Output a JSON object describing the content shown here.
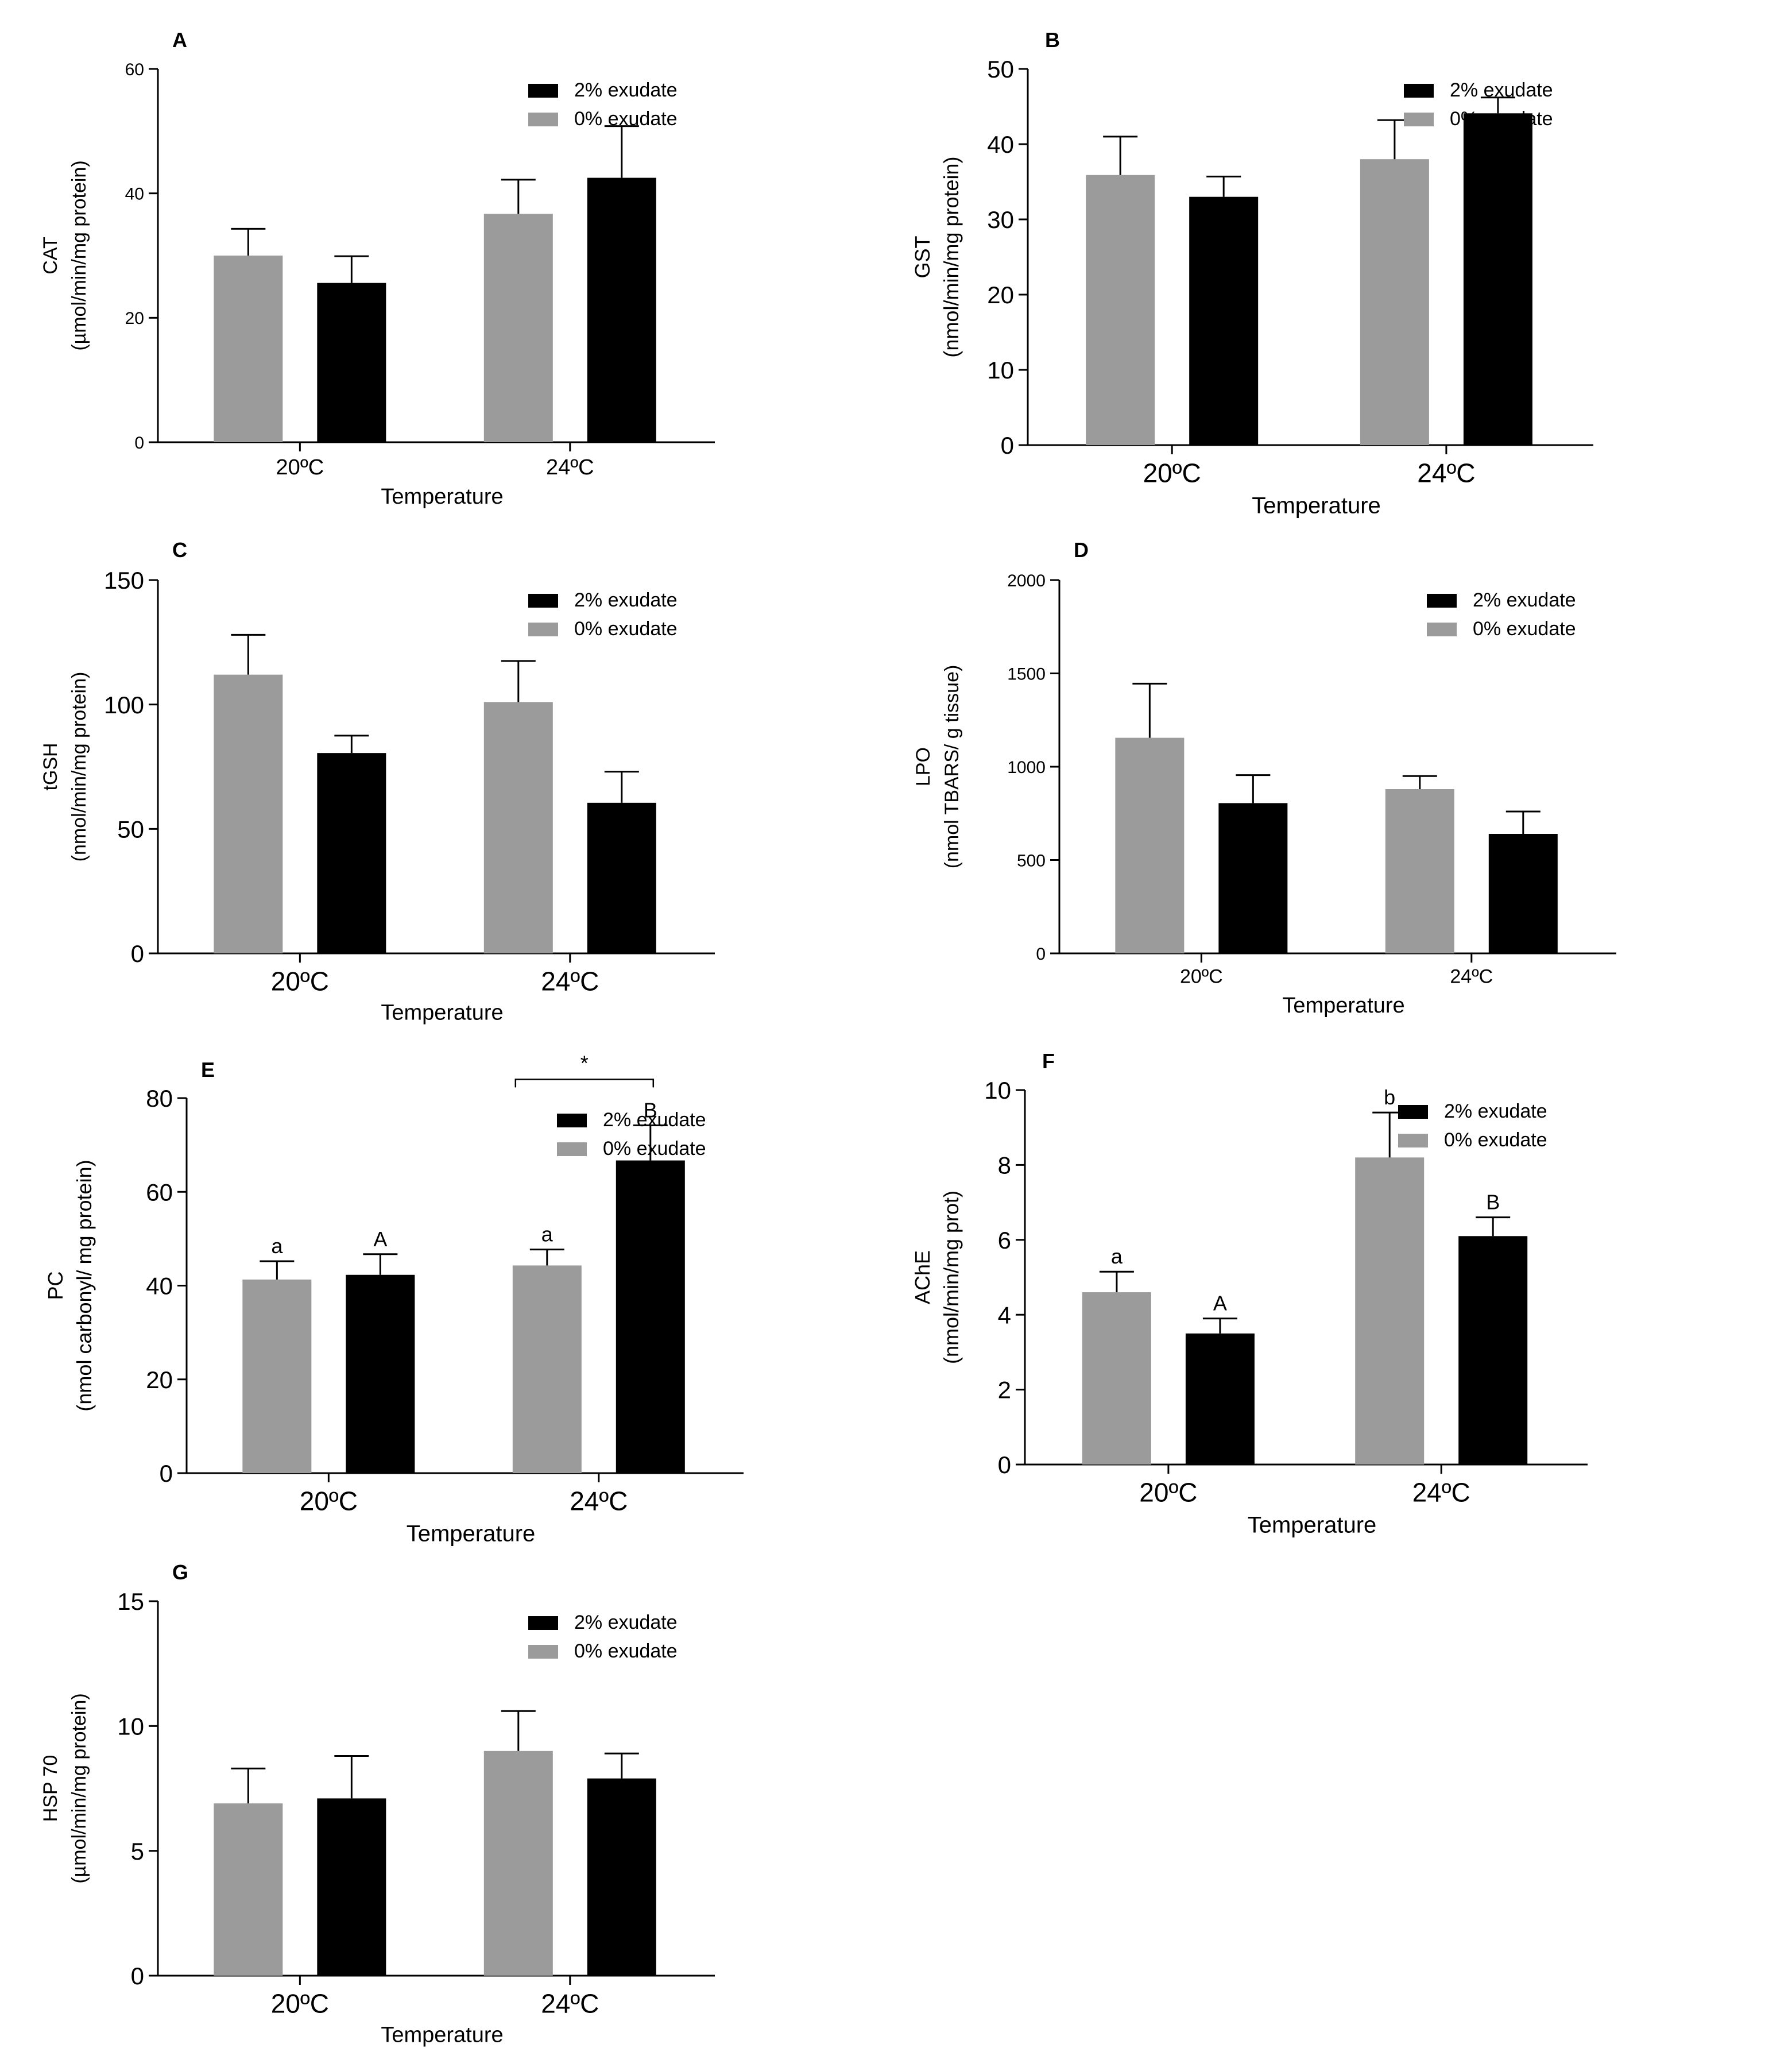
{
  "figure": {
    "background": "#ffffff",
    "axis_color": "#000000"
  },
  "chart_data": [
    {
      "type": "bar",
      "panel_label": "A",
      "title": "",
      "xlabel": "Temperature",
      "ylabel": [
        "CAT",
        "(µmol/min/mg protein)"
      ],
      "categories": [
        "20ºC",
        "24ºC"
      ],
      "ylim": [
        0,
        60
      ],
      "yticks": [
        0,
        20,
        40,
        60
      ],
      "legend": {
        "position": "top-right",
        "entries": [
          {
            "label": "2% exudate",
            "color": "#000000"
          },
          {
            "label": "0% exudate",
            "color": "#9b9b9b"
          }
        ]
      },
      "series": [
        {
          "name": "0% exudate",
          "color": "#9b9b9b",
          "values": [
            30,
            36.7
          ],
          "errors": [
            4.3,
            5.5
          ],
          "annotations": [
            "",
            ""
          ]
        },
        {
          "name": "2% exudate",
          "color": "#000000",
          "values": [
            25.6,
            42.5
          ],
          "errors": [
            4.3,
            8.3
          ],
          "annotations": [
            "",
            ""
          ]
        }
      ],
      "brackets": []
    },
    {
      "type": "bar",
      "panel_label": "B",
      "title": "",
      "xlabel": "Temperature",
      "ylabel": [
        "GST",
        "(nmol/min/mg protein)"
      ],
      "categories": [
        "20ºC",
        "24ºC"
      ],
      "ylim": [
        0,
        50
      ],
      "yticks": [
        0,
        10,
        20,
        30,
        40,
        50
      ],
      "legend": {
        "position": "top-right",
        "entries": [
          {
            "label": "2% exudate",
            "color": "#000000"
          },
          {
            "label": "0% exudate",
            "color": "#9b9b9b"
          }
        ]
      },
      "series": [
        {
          "name": "0% exudate",
          "color": "#9b9b9b",
          "values": [
            35.9,
            38
          ],
          "errors": [
            5.1,
            5.2
          ],
          "annotations": [
            "",
            ""
          ]
        },
        {
          "name": "2% exudate",
          "color": "#000000",
          "values": [
            33,
            44.1
          ],
          "errors": [
            2.7,
            2.1
          ],
          "annotations": [
            "",
            ""
          ]
        }
      ],
      "brackets": []
    },
    {
      "type": "bar",
      "panel_label": "C",
      "title": "",
      "xlabel": "Temperature",
      "ylabel": [
        "tGSH",
        "(nmol/min/mg protein)"
      ],
      "categories": [
        "20ºC",
        "24ºC"
      ],
      "ylim": [
        0,
        150
      ],
      "yticks": [
        0,
        50,
        100,
        150
      ],
      "legend": {
        "position": "top-right",
        "entries": [
          {
            "label": "2% exudate",
            "color": "#000000"
          },
          {
            "label": "0% exudate",
            "color": "#9b9b9b"
          }
        ]
      },
      "series": [
        {
          "name": "0% exudate",
          "color": "#9b9b9b",
          "values": [
            112,
            101
          ],
          "errors": [
            16,
            16.5
          ],
          "annotations": [
            "",
            ""
          ]
        },
        {
          "name": "2% exudate",
          "color": "#000000",
          "values": [
            80.5,
            60.5
          ],
          "errors": [
            7,
            12.5
          ],
          "annotations": [
            "",
            ""
          ]
        }
      ],
      "brackets": []
    },
    {
      "type": "bar",
      "panel_label": "D",
      "title": "",
      "xlabel": "Temperature",
      "ylabel": [
        "LPO",
        "(nmol TBARS/ g tissue)"
      ],
      "categories": [
        "20ºC",
        "24ºC"
      ],
      "ylim": [
        0,
        2000
      ],
      "yticks": [
        0,
        500,
        1000,
        1500,
        2000
      ],
      "legend": {
        "position": "top-right",
        "entries": [
          {
            "label": "2% exudate",
            "color": "#000000"
          },
          {
            "label": "0% exudate",
            "color": "#9b9b9b"
          }
        ]
      },
      "series": [
        {
          "name": "0% exudate",
          "color": "#9b9b9b",
          "values": [
            1155,
            880
          ],
          "errors": [
            290,
            70
          ],
          "annotations": [
            "",
            ""
          ]
        },
        {
          "name": "2% exudate",
          "color": "#000000",
          "values": [
            805,
            640
          ],
          "errors": [
            150,
            120
          ],
          "annotations": [
            "",
            ""
          ]
        }
      ],
      "brackets": []
    },
    {
      "type": "bar",
      "panel_label": "E",
      "title": "",
      "xlabel": "Temperature",
      "ylabel": [
        "PC",
        "(nmol carbonyl/ mg protein)"
      ],
      "categories": [
        "20ºC",
        "24ºC"
      ],
      "ylim": [
        0,
        80
      ],
      "yticks": [
        0,
        20,
        40,
        60,
        80
      ],
      "legend": {
        "position": "top-right",
        "entries": [
          {
            "label": "2% exudate",
            "color": "#000000"
          },
          {
            "label": "0% exudate",
            "color": "#9b9b9b"
          }
        ]
      },
      "series": [
        {
          "name": "0% exudate",
          "color": "#9b9b9b",
          "values": [
            41.3,
            44.3
          ],
          "errors": [
            3.9,
            3.4
          ],
          "annotations": [
            "a",
            "a"
          ]
        },
        {
          "name": "2% exudate",
          "color": "#000000",
          "values": [
            42.3,
            66.7
          ],
          "errors": [
            4.4,
            7.5
          ],
          "annotations": [
            "A",
            "B"
          ]
        }
      ],
      "brackets": [
        {
          "text": "*",
          "from": {
            "category": 1,
            "series": 0
          },
          "to": {
            "category": 1,
            "series": 1
          },
          "at_value": 84
        }
      ]
    },
    {
      "type": "bar",
      "panel_label": "F",
      "title": "",
      "xlabel": "Temperature",
      "ylabel": [
        "AChE",
        "(nmol/min/mg prot)"
      ],
      "categories": [
        "20ºC",
        "24ºC"
      ],
      "ylim": [
        0,
        10
      ],
      "yticks": [
        0,
        2,
        4,
        6,
        8,
        10
      ],
      "legend": {
        "position": "top-right",
        "entries": [
          {
            "label": "2% exudate",
            "color": "#000000"
          },
          {
            "label": "0% exudate",
            "color": "#9b9b9b"
          }
        ]
      },
      "series": [
        {
          "name": "0% exudate",
          "color": "#9b9b9b",
          "values": [
            4.6,
            8.2
          ],
          "errors": [
            0.55,
            1.2
          ],
          "annotations": [
            "a",
            "b"
          ]
        },
        {
          "name": "2% exudate",
          "color": "#000000",
          "values": [
            3.5,
            6.1
          ],
          "errors": [
            0.4,
            0.5
          ],
          "annotations": [
            "A",
            "B"
          ]
        }
      ],
      "brackets": []
    },
    {
      "type": "bar",
      "panel_label": "G",
      "title": "",
      "xlabel": "Temperature",
      "ylabel": [
        "HSP 70",
        "(µmol/min/mg protein)"
      ],
      "categories": [
        "20ºC",
        "24ºC"
      ],
      "ylim": [
        0,
        15
      ],
      "yticks": [
        0,
        5,
        10,
        15
      ],
      "legend": {
        "position": "top-right",
        "entries": [
          {
            "label": "2% exudate",
            "color": "#000000"
          },
          {
            "label": "0% exudate",
            "color": "#9b9b9b"
          }
        ]
      },
      "series": [
        {
          "name": "0% exudate",
          "color": "#9b9b9b",
          "values": [
            6.9,
            9
          ],
          "errors": [
            1.4,
            1.6
          ],
          "annotations": [
            "",
            ""
          ]
        },
        {
          "name": "2% exudate",
          "color": "#000000",
          "values": [
            7.1,
            7.9
          ],
          "errors": [
            1.7,
            1
          ],
          "annotations": [
            "",
            ""
          ]
        }
      ],
      "brackets": []
    }
  ]
}
